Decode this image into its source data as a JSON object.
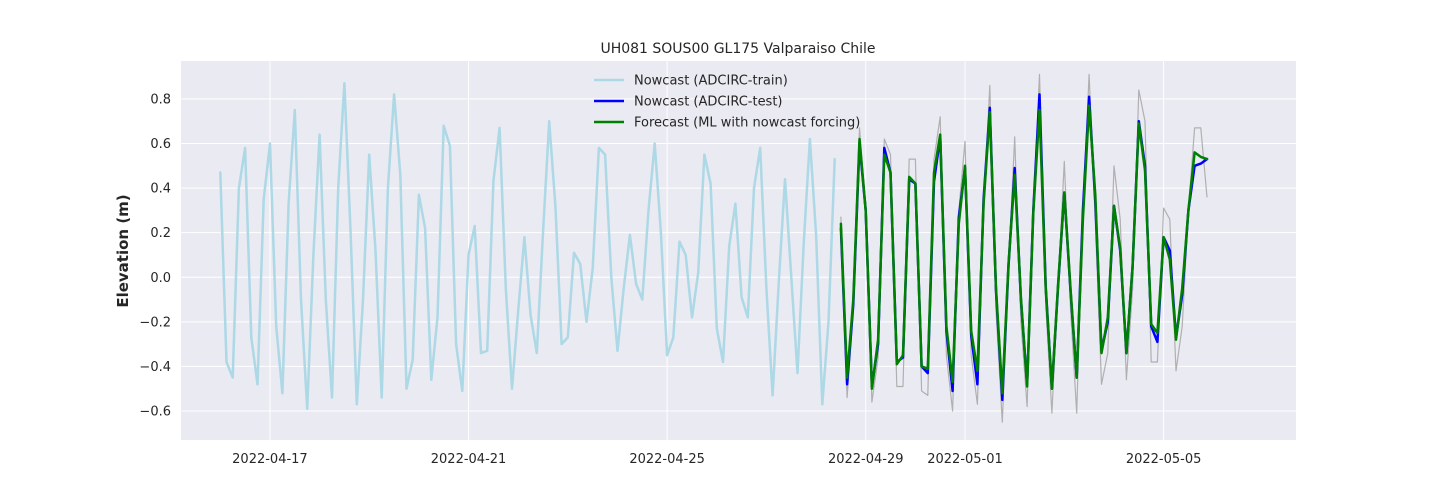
{
  "chart_data": {
    "type": "line",
    "title": "UH081 SOUS00 GL175 Valparaiso Chile",
    "xlabel": "",
    "ylabel": "Elevation (m)",
    "x_axis": {
      "type": "date",
      "range": [
        "2022-04-15T05:00",
        "2022-05-07T16:00"
      ],
      "ticks": [
        "2022-04-17",
        "2022-04-21",
        "2022-04-25",
        "2022-04-29",
        "2022-05-01",
        "2022-05-05"
      ]
    },
    "y_axis": {
      "range": [
        -0.73,
        0.97
      ],
      "ticks": [
        -0.6,
        -0.4,
        -0.2,
        0.0,
        0.2,
        0.4,
        0.6,
        0.8
      ],
      "tick_labels": [
        "−0.6",
        "−0.4",
        "−0.2",
        "0.0",
        "0.2",
        "0.4",
        "0.6",
        "0.8"
      ]
    },
    "grid": true,
    "background": "#eaeaf2",
    "legend_position": "upper-center",
    "series": [
      {
        "name": "Nowcast (ADCIRC-train)",
        "color": "#add8e6",
        "x": [
          "2022-04-16T00:00",
          "2022-04-16T03:00",
          "2022-04-16T06:00",
          "2022-04-16T09:00",
          "2022-04-16T12:00",
          "2022-04-16T15:00",
          "2022-04-16T18:00",
          "2022-04-16T21:00",
          "2022-04-17T00:00",
          "2022-04-17T03:00",
          "2022-04-17T06:00",
          "2022-04-17T09:00",
          "2022-04-17T12:00",
          "2022-04-17T15:00",
          "2022-04-17T18:00",
          "2022-04-17T21:00",
          "2022-04-18T00:00",
          "2022-04-18T03:00",
          "2022-04-18T06:00",
          "2022-04-18T09:00",
          "2022-04-18T12:00",
          "2022-04-18T15:00",
          "2022-04-18T18:00",
          "2022-04-18T21:00",
          "2022-04-19T00:00",
          "2022-04-19T03:00",
          "2022-04-19T06:00",
          "2022-04-19T09:00",
          "2022-04-19T12:00",
          "2022-04-19T15:00",
          "2022-04-19T18:00",
          "2022-04-19T21:00",
          "2022-04-20T00:00",
          "2022-04-20T03:00",
          "2022-04-20T06:00",
          "2022-04-20T09:00",
          "2022-04-20T12:00",
          "2022-04-20T15:00",
          "2022-04-20T18:00",
          "2022-04-20T21:00",
          "2022-04-21T00:00",
          "2022-04-21T03:00",
          "2022-04-21T06:00",
          "2022-04-21T09:00",
          "2022-04-21T12:00",
          "2022-04-21T15:00",
          "2022-04-21T18:00",
          "2022-04-21T21:00",
          "2022-04-22T00:00",
          "2022-04-22T03:00",
          "2022-04-22T06:00",
          "2022-04-22T09:00",
          "2022-04-22T12:00",
          "2022-04-22T15:00",
          "2022-04-22T18:00",
          "2022-04-22T21:00",
          "2022-04-23T00:00",
          "2022-04-23T03:00",
          "2022-04-23T06:00",
          "2022-04-23T09:00",
          "2022-04-23T12:00",
          "2022-04-23T15:00",
          "2022-04-23T18:00",
          "2022-04-23T21:00",
          "2022-04-24T00:00",
          "2022-04-24T03:00",
          "2022-04-24T06:00",
          "2022-04-24T09:00",
          "2022-04-24T12:00",
          "2022-04-24T15:00",
          "2022-04-24T18:00",
          "2022-04-24T21:00",
          "2022-04-25T00:00",
          "2022-04-25T03:00",
          "2022-04-25T06:00",
          "2022-04-25T09:00",
          "2022-04-25T12:00",
          "2022-04-25T15:00",
          "2022-04-25T18:00",
          "2022-04-25T21:00",
          "2022-04-26T00:00",
          "2022-04-26T03:00",
          "2022-04-26T06:00",
          "2022-04-26T09:00",
          "2022-04-26T12:00",
          "2022-04-26T15:00",
          "2022-04-26T18:00",
          "2022-04-26T21:00",
          "2022-04-27T00:00",
          "2022-04-27T03:00",
          "2022-04-27T06:00",
          "2022-04-27T09:00",
          "2022-04-27T12:00",
          "2022-04-27T15:00",
          "2022-04-27T18:00",
          "2022-04-27T21:00",
          "2022-04-28T00:00",
          "2022-04-28T03:00",
          "2022-04-28T06:00",
          "2022-04-28T09:00"
        ],
        "y": [
          0.47,
          -0.38,
          -0.45,
          0.4,
          0.58,
          -0.27,
          -0.48,
          0.35,
          0.6,
          -0.22,
          -0.52,
          0.33,
          0.75,
          -0.1,
          -0.59,
          0.1,
          0.64,
          -0.1,
          -0.54,
          0.4,
          0.87,
          0.2,
          -0.57,
          -0.1,
          0.55,
          0.12,
          -0.54,
          0.4,
          0.82,
          0.46,
          -0.5,
          -0.37,
          0.37,
          0.22,
          -0.46,
          -0.18,
          0.68,
          0.59,
          -0.3,
          -0.51,
          0.1,
          0.23,
          -0.34,
          -0.33,
          0.43,
          0.67,
          -0.05,
          -0.5,
          -0.15,
          0.18,
          -0.17,
          -0.34,
          0.2,
          0.7,
          0.32,
          -0.3,
          -0.27,
          0.11,
          0.06,
          -0.2,
          0.04,
          0.58,
          0.55,
          0.0,
          -0.33,
          -0.05,
          0.19,
          -0.03,
          -0.1,
          0.3,
          0.6,
          0.2,
          -0.35,
          -0.27,
          0.16,
          0.1,
          -0.18,
          0.02,
          0.55,
          0.42,
          -0.23,
          -0.38,
          0.14,
          0.33,
          -0.09,
          -0.18,
          0.4,
          0.58,
          -0.05,
          -0.53,
          -0.02,
          0.44,
          0.0,
          -0.43,
          0.15,
          0.62,
          0.19,
          -0.57,
          -0.2,
          0.53
        ]
      },
      {
        "name": "",
        "color": "#b0b0b0",
        "x": [
          "2022-04-28T12:00",
          "2022-04-28T15:00",
          "2022-04-28T18:00",
          "2022-04-28T21:00",
          "2022-04-29T00:00",
          "2022-04-29T03:00",
          "2022-04-29T06:00",
          "2022-04-29T09:00",
          "2022-04-29T12:00",
          "2022-04-29T15:00",
          "2022-04-29T18:00",
          "2022-04-29T21:00",
          "2022-04-30T00:00",
          "2022-04-30T03:00",
          "2022-04-30T06:00",
          "2022-04-30T09:00",
          "2022-04-30T12:00",
          "2022-04-30T15:00",
          "2022-04-30T18:00",
          "2022-04-30T21:00",
          "2022-05-01T00:00",
          "2022-05-01T03:00",
          "2022-05-01T06:00",
          "2022-05-01T09:00",
          "2022-05-01T12:00",
          "2022-05-01T15:00",
          "2022-05-01T18:00",
          "2022-05-01T21:00",
          "2022-05-02T00:00",
          "2022-05-02T03:00",
          "2022-05-02T06:00",
          "2022-05-02T09:00",
          "2022-05-02T12:00",
          "2022-05-02T15:00",
          "2022-05-02T18:00",
          "2022-05-02T21:00",
          "2022-05-03T00:00",
          "2022-05-03T03:00",
          "2022-05-03T06:00",
          "2022-05-03T09:00",
          "2022-05-03T12:00",
          "2022-05-03T15:00",
          "2022-05-03T18:00",
          "2022-05-03T21:00",
          "2022-05-04T00:00",
          "2022-05-04T03:00",
          "2022-05-04T06:00",
          "2022-05-04T09:00",
          "2022-05-04T12:00",
          "2022-05-04T15:00",
          "2022-05-04T18:00",
          "2022-05-04T21:00",
          "2022-05-05T00:00",
          "2022-05-05T03:00",
          "2022-05-05T06:00",
          "2022-05-05T09:00",
          "2022-05-05T12:00",
          "2022-05-05T15:00",
          "2022-05-05T18:00",
          "2022-05-05T21:00"
        ],
        "y": [
          0.27,
          -0.54,
          -0.15,
          0.67,
          0.3,
          -0.56,
          -0.36,
          0.62,
          0.55,
          -0.49,
          -0.49,
          0.53,
          0.53,
          -0.51,
          -0.53,
          0.53,
          0.72,
          -0.35,
          -0.6,
          0.3,
          0.61,
          -0.35,
          -0.57,
          0.3,
          0.86,
          -0.15,
          -0.65,
          0.03,
          0.63,
          -0.2,
          -0.58,
          0.3,
          0.91,
          -0.12,
          -0.61,
          -0.04,
          0.52,
          -0.14,
          -0.61,
          0.3,
          0.91,
          0.25,
          -0.48,
          -0.34,
          0.5,
          0.26,
          -0.46,
          -0.05,
          0.84,
          0.7,
          -0.38,
          -0.38,
          0.31,
          0.26,
          -0.42,
          -0.22,
          0.3,
          0.67,
          0.67,
          0.36
        ]
      },
      {
        "name": "Nowcast (ADCIRC-test)",
        "color": "#0000ff",
        "x": [
          "2022-04-28T12:00",
          "2022-04-28T15:00",
          "2022-04-28T18:00",
          "2022-04-28T21:00",
          "2022-04-29T00:00",
          "2022-04-29T03:00",
          "2022-04-29T06:00",
          "2022-04-29T09:00",
          "2022-04-29T12:00",
          "2022-04-29T15:00",
          "2022-04-29T18:00",
          "2022-04-29T21:00",
          "2022-04-30T00:00",
          "2022-04-30T03:00",
          "2022-04-30T06:00",
          "2022-04-30T09:00",
          "2022-04-30T12:00",
          "2022-04-30T15:00",
          "2022-04-30T18:00",
          "2022-04-30T21:00",
          "2022-05-01T00:00",
          "2022-05-01T03:00",
          "2022-05-01T06:00",
          "2022-05-01T09:00",
          "2022-05-01T12:00",
          "2022-05-01T15:00",
          "2022-05-01T18:00",
          "2022-05-01T21:00",
          "2022-05-02T00:00",
          "2022-05-02T03:00",
          "2022-05-02T06:00",
          "2022-05-02T09:00",
          "2022-05-02T12:00",
          "2022-05-02T15:00",
          "2022-05-02T18:00",
          "2022-05-02T21:00",
          "2022-05-03T00:00",
          "2022-05-03T03:00",
          "2022-05-03T06:00",
          "2022-05-03T09:00",
          "2022-05-03T12:00",
          "2022-05-03T15:00",
          "2022-05-03T18:00",
          "2022-05-03T21:00",
          "2022-05-04T00:00",
          "2022-05-04T03:00",
          "2022-05-04T06:00",
          "2022-05-04T09:00",
          "2022-05-04T12:00",
          "2022-05-04T15:00",
          "2022-05-04T18:00",
          "2022-05-04T21:00",
          "2022-05-05T00:00",
          "2022-05-05T03:00",
          "2022-05-05T06:00",
          "2022-05-05T09:00",
          "2022-05-05T12:00",
          "2022-05-05T15:00",
          "2022-05-05T18:00",
          "2022-05-05T21:00"
        ],
        "y": [
          0.22,
          -0.48,
          -0.12,
          0.6,
          0.3,
          -0.49,
          -0.3,
          0.58,
          0.47,
          -0.38,
          -0.36,
          0.44,
          0.42,
          -0.4,
          -0.43,
          0.43,
          0.63,
          -0.24,
          -0.51,
          0.27,
          0.49,
          -0.26,
          -0.48,
          0.35,
          0.76,
          -0.06,
          -0.55,
          0.05,
          0.49,
          -0.1,
          -0.48,
          0.3,
          0.82,
          -0.04,
          -0.5,
          -0.04,
          0.38,
          -0.06,
          -0.45,
          0.3,
          0.81,
          0.34,
          -0.33,
          -0.2,
          0.32,
          0.12,
          -0.34,
          0.05,
          0.7,
          0.5,
          -0.22,
          -0.29,
          0.18,
          0.12,
          -0.27,
          -0.08,
          0.3,
          0.5,
          0.51,
          0.53
        ]
      },
      {
        "name": "Forecast (ML with nowcast forcing)",
        "color": "#008000",
        "x": [
          "2022-04-28T12:00",
          "2022-04-28T15:00",
          "2022-04-28T18:00",
          "2022-04-28T21:00",
          "2022-04-29T00:00",
          "2022-04-29T03:00",
          "2022-04-29T06:00",
          "2022-04-29T09:00",
          "2022-04-29T12:00",
          "2022-04-29T15:00",
          "2022-04-29T18:00",
          "2022-04-29T21:00",
          "2022-04-30T00:00",
          "2022-04-30T03:00",
          "2022-04-30T06:00",
          "2022-04-30T09:00",
          "2022-04-30T12:00",
          "2022-04-30T15:00",
          "2022-04-30T18:00",
          "2022-04-30T21:00",
          "2022-05-01T00:00",
          "2022-05-01T03:00",
          "2022-05-01T06:00",
          "2022-05-01T09:00",
          "2022-05-01T12:00",
          "2022-05-01T15:00",
          "2022-05-01T18:00",
          "2022-05-01T21:00",
          "2022-05-02T00:00",
          "2022-05-02T03:00",
          "2022-05-02T06:00",
          "2022-05-02T09:00",
          "2022-05-02T12:00",
          "2022-05-02T15:00",
          "2022-05-02T18:00",
          "2022-05-02T21:00",
          "2022-05-03T00:00",
          "2022-05-03T03:00",
          "2022-05-03T06:00",
          "2022-05-03T09:00",
          "2022-05-03T12:00",
          "2022-05-03T15:00",
          "2022-05-03T18:00",
          "2022-05-03T21:00",
          "2022-05-04T00:00",
          "2022-05-04T03:00",
          "2022-05-04T06:00",
          "2022-05-04T09:00",
          "2022-05-04T12:00",
          "2022-05-04T15:00",
          "2022-05-04T18:00",
          "2022-05-04T21:00",
          "2022-05-05T00:00",
          "2022-05-05T03:00",
          "2022-05-05T06:00",
          "2022-05-05T09:00",
          "2022-05-05T12:00",
          "2022-05-05T15:00",
          "2022-05-05T18:00",
          "2022-05-05T21:00"
        ],
        "y": [
          0.24,
          -0.45,
          -0.1,
          0.62,
          0.3,
          -0.5,
          -0.28,
          0.55,
          0.47,
          -0.39,
          -0.35,
          0.45,
          0.42,
          -0.4,
          -0.41,
          0.47,
          0.64,
          -0.22,
          -0.47,
          0.24,
          0.5,
          -0.24,
          -0.42,
          0.33,
          0.74,
          -0.05,
          -0.52,
          0.06,
          0.46,
          -0.09,
          -0.49,
          0.29,
          0.75,
          -0.05,
          -0.5,
          -0.03,
          0.38,
          -0.05,
          -0.45,
          0.26,
          0.77,
          0.37,
          -0.34,
          -0.18,
          0.32,
          0.13,
          -0.34,
          0.05,
          0.69,
          0.48,
          -0.21,
          -0.25,
          0.18,
          0.08,
          -0.28,
          -0.05,
          0.3,
          0.56,
          0.54,
          0.53
        ]
      }
    ]
  }
}
